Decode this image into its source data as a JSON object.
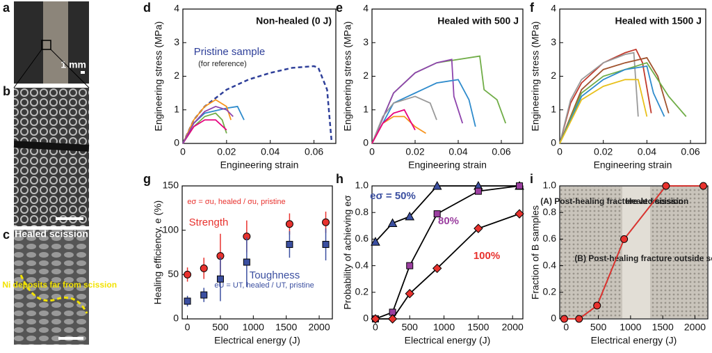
{
  "panel_labels": [
    "a",
    "b",
    "c",
    "d",
    "e",
    "f",
    "g",
    "h",
    "i"
  ],
  "image_texts": {
    "scale_bar": "1 mm",
    "healed_scission": "Healed scission",
    "no_ni": "No Ni deposits far from scission"
  },
  "chart_data": [
    {
      "type": "line",
      "title": "Non-healed (0 J)",
      "xlabel": "Engineering strain",
      "ylabel": "Engineering stress (MPa)",
      "xlim": [
        0,
        0.07
      ],
      "ylim": [
        0,
        4
      ],
      "xticks": [
        0,
        0.02,
        0.04,
        0.06
      ],
      "yticks": [
        0,
        1,
        2,
        3,
        4
      ],
      "annotations": [
        "(for reference)"
      ],
      "series": [
        {
          "name": "Pristine sample",
          "color": "#2e3f99",
          "style": "dashed",
          "x": [
            0,
            0.005,
            0.01,
            0.02,
            0.03,
            0.04,
            0.05,
            0.06,
            0.062,
            0.066,
            0.068
          ],
          "values": [
            0,
            0.7,
            1.1,
            1.6,
            1.9,
            2.1,
            2.25,
            2.3,
            2.25,
            1.6,
            0.1
          ]
        },
        {
          "color": "#2e8bcc",
          "x": [
            0,
            0.005,
            0.01,
            0.02,
            0.025,
            0.028
          ],
          "values": [
            0,
            0.6,
            0.9,
            1.05,
            1.1,
            0.7
          ]
        },
        {
          "color": "#f7941d",
          "x": [
            0,
            0.005,
            0.01,
            0.015,
            0.02,
            0.022
          ],
          "values": [
            0,
            0.7,
            1.1,
            1.3,
            1.1,
            0.7
          ]
        },
        {
          "color": "#70ad47",
          "x": [
            0,
            0.005,
            0.01,
            0.015,
            0.018,
            0.02
          ],
          "values": [
            0,
            0.5,
            0.8,
            0.9,
            0.7,
            0.3
          ]
        },
        {
          "color": "#e6007e",
          "x": [
            0,
            0.005,
            0.01,
            0.015,
            0.02
          ],
          "values": [
            0,
            0.5,
            0.7,
            0.7,
            0.4
          ]
        },
        {
          "color": "#8e44ad",
          "x": [
            0,
            0.005,
            0.01,
            0.015,
            0.02,
            0.023
          ],
          "values": [
            0,
            0.6,
            0.95,
            1.1,
            1.0,
            0.8
          ]
        }
      ]
    },
    {
      "type": "line",
      "title": "Healed with 500 J",
      "xlabel": "Engineering strain",
      "ylabel": "Engineering stress (MPa)",
      "xlim": [
        0,
        0.07
      ],
      "ylim": [
        0,
        4
      ],
      "xticks": [
        0,
        0.02,
        0.04,
        0.06
      ],
      "yticks": [
        0,
        1,
        2,
        3,
        4
      ],
      "series": [
        {
          "color": "#70ad47",
          "x": [
            0,
            0.01,
            0.02,
            0.03,
            0.05,
            0.052,
            0.058,
            0.062
          ],
          "values": [
            0,
            1.5,
            2.1,
            2.4,
            2.6,
            1.6,
            1.3,
            0.6
          ]
        },
        {
          "color": "#8e44ad",
          "x": [
            0,
            0.01,
            0.02,
            0.03,
            0.037,
            0.038,
            0.042
          ],
          "values": [
            0,
            1.5,
            2.1,
            2.4,
            2.5,
            1.4,
            0.6
          ]
        },
        {
          "color": "#2e8bcc",
          "x": [
            0,
            0.01,
            0.02,
            0.03,
            0.04,
            0.045,
            0.048
          ],
          "values": [
            0,
            1.2,
            1.5,
            1.8,
            1.9,
            1.3,
            0.5
          ]
        },
        {
          "color": "#999999",
          "x": [
            0,
            0.005,
            0.01,
            0.02,
            0.027,
            0.03
          ],
          "values": [
            0,
            0.8,
            1.2,
            1.4,
            1.2,
            0.7
          ]
        },
        {
          "color": "#f7941d",
          "x": [
            0,
            0.005,
            0.01,
            0.015,
            0.02,
            0.025
          ],
          "values": [
            0,
            0.6,
            0.8,
            0.8,
            0.5,
            0.3
          ]
        },
        {
          "color": "#e6007e",
          "x": [
            0,
            0.005,
            0.01,
            0.015,
            0.02
          ],
          "values": [
            0,
            0.6,
            0.9,
            1.0,
            0.4
          ]
        }
      ]
    },
    {
      "type": "line",
      "title": "Healed with 1500 J",
      "xlabel": "Engineering strain",
      "ylabel": "Engineering stress (MPa)",
      "xlim": [
        0,
        0.067
      ],
      "ylim": [
        0,
        4
      ],
      "xticks": [
        0,
        0.02,
        0.04,
        0.06
      ],
      "yticks": [
        0,
        1,
        2,
        3,
        4
      ],
      "series": [
        {
          "color": "#c0392b",
          "x": [
            0,
            0.005,
            0.01,
            0.02,
            0.03,
            0.035,
            0.038,
            0.042
          ],
          "values": [
            0,
            1.2,
            1.8,
            2.4,
            2.7,
            2.8,
            2.4,
            0.9
          ]
        },
        {
          "color": "#999999",
          "x": [
            0,
            0.005,
            0.01,
            0.02,
            0.03,
            0.034,
            0.036
          ],
          "values": [
            0,
            1.3,
            1.9,
            2.4,
            2.65,
            2.7,
            0.8
          ]
        },
        {
          "color": "#a0522d",
          "x": [
            0,
            0.01,
            0.02,
            0.03,
            0.04,
            0.045,
            0.05
          ],
          "values": [
            0,
            1.6,
            2.2,
            2.4,
            2.55,
            2.0,
            0.9
          ]
        },
        {
          "color": "#70ad47",
          "x": [
            0,
            0.01,
            0.02,
            0.03,
            0.04,
            0.05,
            0.058
          ],
          "values": [
            0,
            1.5,
            2.0,
            2.2,
            2.4,
            1.4,
            0.8
          ]
        },
        {
          "color": "#2e8bcc",
          "x": [
            0,
            0.01,
            0.02,
            0.03,
            0.04,
            0.043,
            0.048
          ],
          "values": [
            0,
            1.4,
            1.9,
            2.2,
            2.3,
            1.5,
            0.8
          ]
        },
        {
          "color": "#e8c01a",
          "x": [
            0,
            0.01,
            0.02,
            0.03,
            0.036,
            0.04
          ],
          "values": [
            0,
            1.3,
            1.7,
            1.9,
            1.9,
            0.8
          ]
        }
      ]
    },
    {
      "type": "scatter",
      "xlabel": "Electrical energy (J)",
      "ylabel": "Healing efficiency, e (%)",
      "xlim": [
        -80,
        2200
      ],
      "ylim": [
        0,
        150
      ],
      "xticks": [
        0,
        500,
        1000,
        1500,
        2000
      ],
      "yticks": [
        0,
        50,
        100,
        150
      ],
      "annotations": [
        "eσ = σu, healed / σu, pristine",
        "eU = UT, healed / UT, pristine"
      ],
      "x": [
        0,
        250,
        500,
        900,
        1550,
        2100
      ],
      "series": [
        {
          "name": "Strength",
          "color": "#e8322e",
          "marker": "circle",
          "values": [
            50,
            57,
            71,
            93,
            107,
            109
          ],
          "errors": [
            8,
            12,
            25,
            18,
            12,
            12
          ]
        },
        {
          "name": "Toughness",
          "color": "#3b4fa0",
          "marker": "square",
          "values": [
            20,
            27,
            45,
            64,
            84,
            84
          ],
          "errors": [
            6,
            8,
            25,
            28,
            15,
            18
          ]
        }
      ]
    },
    {
      "type": "line",
      "xlabel": "Electrical energy (J)",
      "ylabel": "Probability of achieving eσ",
      "xlim": [
        -50,
        2150
      ],
      "ylim": [
        0,
        1
      ],
      "xticks": [
        0,
        500,
        1000,
        1500,
        2000
      ],
      "yticks": [
        0,
        0.2,
        0.4,
        0.6,
        0.8,
        {
          "value": 1,
          "label": "1.0"
        }
      ],
      "x": [
        0,
        250,
        500,
        900,
        1500,
        2100
      ],
      "series": [
        {
          "name": "eσ = 50%",
          "color": "#3b4fa0",
          "marker": "triangle",
          "values": [
            0.58,
            0.72,
            0.77,
            1.0,
            1.0,
            1.0
          ]
        },
        {
          "name": "80%",
          "color": "#9b3fa0",
          "marker": "square",
          "values": [
            0,
            0.05,
            0.4,
            0.79,
            0.96,
            1.0
          ]
        },
        {
          "name": "100%",
          "color": "#e8322e",
          "marker": "diamond",
          "values": [
            0,
            0,
            0.19,
            0.38,
            0.68,
            0.79
          ]
        }
      ]
    },
    {
      "type": "line",
      "xlabel": "Electrical energy (J)",
      "ylabel": "Fraction of B samples",
      "xlim": [
        -100,
        2200
      ],
      "ylim": [
        0,
        1
      ],
      "xticks": [
        0,
        500,
        1000,
        1500,
        2000
      ],
      "yticks": [
        0,
        0.2,
        0.4,
        0.6,
        0.8,
        {
          "value": 1,
          "label": "1.0"
        }
      ],
      "annotations": [
        "(A) Post-healing fracture at scission",
        "Healed scission",
        "(B) Post-healing fracture outside scission"
      ],
      "x": [
        -30,
        200,
        480,
        900,
        1550,
        2130
      ],
      "series": [
        {
          "color": "#e8322e",
          "marker": "circle",
          "values": [
            0,
            0,
            0.1,
            0.6,
            1,
            1
          ]
        }
      ]
    }
  ]
}
